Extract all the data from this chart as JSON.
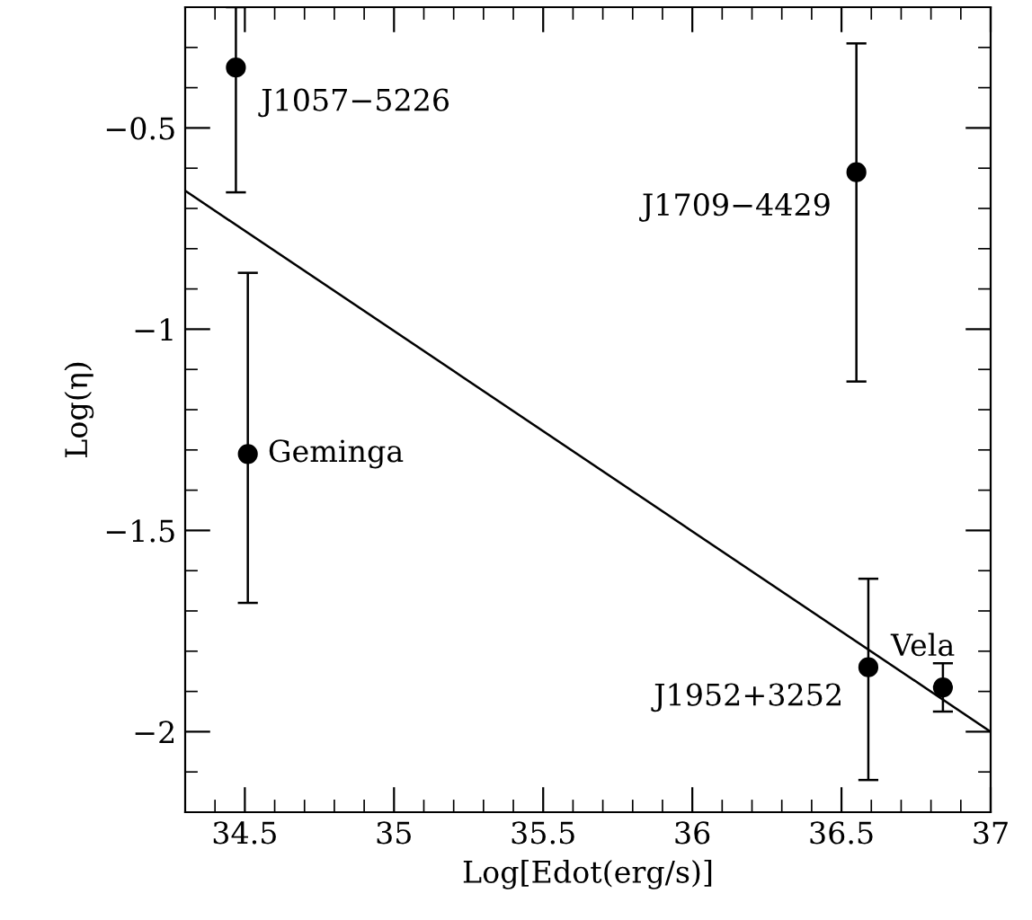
{
  "chart_data": {
    "type": "scatter",
    "xlabel": "Log[Edot(erg/s)]",
    "ylabel": "Log(η)",
    "xlim": [
      34.3,
      37
    ],
    "ylim": [
      -2.2,
      -0.2
    ],
    "xticks": [
      34.5,
      35,
      35.5,
      36,
      36.5,
      37
    ],
    "yticks": [
      {
        "value": -2,
        "label": "−2"
      },
      {
        "value": -1.5,
        "label": "−1.5"
      },
      {
        "value": -1,
        "label": "−1"
      },
      {
        "value": -0.5,
        "label": "−0.5"
      }
    ],
    "grid": false,
    "marker": "circle",
    "series": [
      {
        "color": "#000000",
        "x": [
          34.47,
          34.51,
          36.55,
          36.59,
          36.84
        ],
        "values": [
          -0.35,
          -1.31,
          -0.61,
          -1.84,
          -1.89
        ],
        "errors": [
          [
            -0.66,
            -0.2
          ],
          [
            -1.68,
            -0.86
          ],
          [
            -1.13,
            -0.29
          ],
          [
            -2.12,
            -1.62
          ],
          [
            -1.95,
            -1.83
          ]
        ]
      },
      {
        "type": "line",
        "color": "#000000",
        "marker": "none",
        "line_style": "solid",
        "x": [
          34.3,
          37
        ],
        "values": [
          -0.656,
          -2.0
        ]
      }
    ],
    "annotations": [
      {
        "text": "J1057−5226",
        "x": 34.47,
        "y": -0.35
      },
      {
        "text": "Geminga",
        "x": 34.51,
        "y": -1.31
      },
      {
        "text": "J1709−4429",
        "x": 36.55,
        "y": -0.61
      },
      {
        "text": "J1952+3252",
        "x": 36.59,
        "y": -1.84
      },
      {
        "text": "Vela",
        "x": 36.84,
        "y": -1.89
      }
    ]
  }
}
